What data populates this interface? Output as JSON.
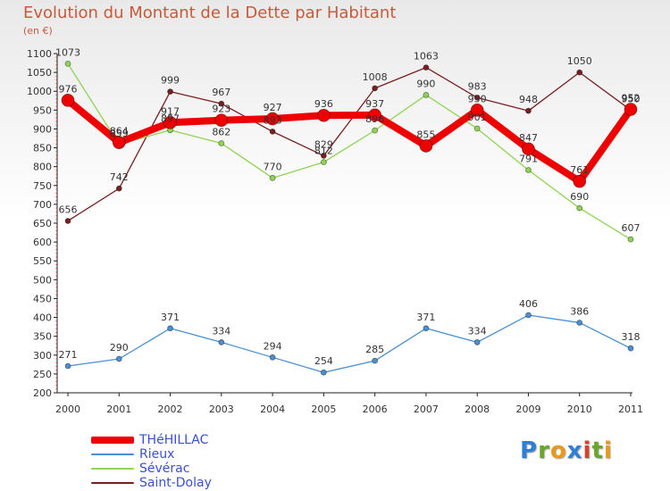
{
  "title": "Evolution du Montant de la Dette par Habitant",
  "unit_note": "(en €)",
  "brand": {
    "text": "Proxiti",
    "letters": [
      "P",
      "r",
      "o",
      "x",
      "i",
      "t",
      "i"
    ],
    "colors": [
      "#2f7fd4",
      "#6aa52c",
      "#e89a18",
      "#2f7fd4",
      "#d9412c",
      "#6aa52c",
      "#e89a18"
    ]
  },
  "chart_data": {
    "type": "line",
    "categories": [
      "2000",
      "2001",
      "2002",
      "2003",
      "2004",
      "2005",
      "2006",
      "2007",
      "2008",
      "2009",
      "2010",
      "2011"
    ],
    "ylim": [
      200,
      1100
    ],
    "yticks": [
      200,
      250,
      300,
      350,
      400,
      450,
      500,
      550,
      600,
      650,
      700,
      750,
      800,
      850,
      900,
      950,
      1000,
      1050,
      1100
    ],
    "grid": false,
    "legend_position": "bottom-left",
    "series": [
      {
        "name": "Saint-Dolay",
        "color": "#7a1f1f",
        "width": 1.3,
        "marker": 3,
        "values": [
          656,
          742,
          999,
          967,
          893,
          829,
          1008,
          1063,
          983,
          948,
          1050,
          950
        ],
        "labels": [
          "656",
          "742",
          "999",
          "967",
          "893",
          "829",
          "1008",
          "1063",
          "983",
          "948",
          "1050",
          "950"
        ]
      },
      {
        "name": "Sévérac",
        "color": "#8fd454",
        "width": 1.3,
        "marker": 3,
        "values": [
          1073,
          859,
          897,
          862,
          770,
          812,
          896,
          990,
          901,
          791,
          690,
          607
        ],
        "labels": [
          "1073",
          "859",
          "897",
          "862",
          "770",
          "812",
          "896",
          "990",
          "901",
          "791",
          "690",
          "607"
        ]
      },
      {
        "name": "Rieux",
        "color": "#4a8fd1",
        "width": 1.3,
        "marker": 3,
        "values": [
          271,
          290,
          371,
          334,
          294,
          254,
          285,
          371,
          334,
          406,
          386,
          318
        ],
        "labels": [
          "271",
          "290",
          "371",
          "334",
          "294",
          "254",
          "285",
          "371",
          "334",
          "406",
          "386",
          "318"
        ]
      },
      {
        "name": "THéHILLAC",
        "color": "#ee0000",
        "width": 8,
        "marker": 7,
        "values": [
          976,
          864,
          917,
          923,
          927,
          936,
          937,
          855,
          950,
          847,
          761,
          952
        ],
        "labels": [
          "976",
          "864",
          "917",
          "923",
          "927",
          "936",
          "937",
          "855",
          "950",
          "847",
          "761",
          "952"
        ]
      }
    ]
  },
  "legend": [
    {
      "name": "THéHILLAC",
      "color": "#ee0000",
      "thickness": 8
    },
    {
      "name": "Rieux",
      "color": "#4a8fd1",
      "thickness": 2
    },
    {
      "name": "Sévérac",
      "color": "#8fd454",
      "thickness": 2
    },
    {
      "name": "Saint-Dolay",
      "color": "#7a1f1f",
      "thickness": 2
    }
  ]
}
